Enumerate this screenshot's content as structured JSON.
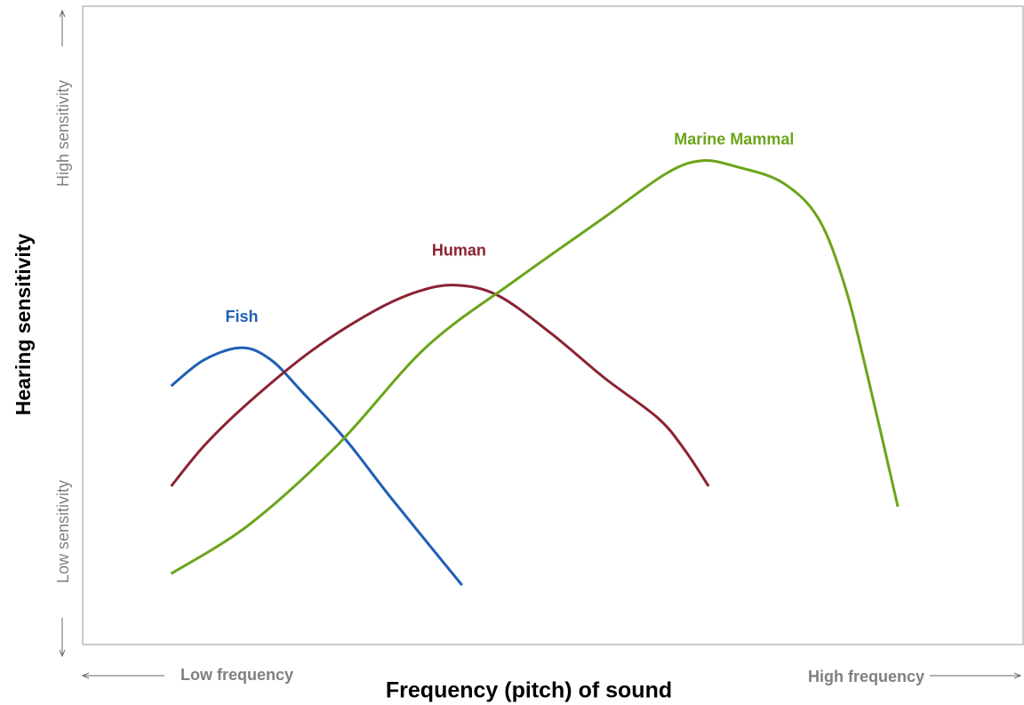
{
  "chart_data": {
    "type": "line",
    "x_label": "Frequency (pitch) of sound",
    "y_label": "Hearing sensitivity",
    "x_low_label": "Low frequency",
    "x_high_label": "High frequency",
    "y_low_label": "Low sensitivity",
    "y_high_label": "High sensitivity",
    "xlim": [
      0,
      100
    ],
    "ylim": [
      0,
      100
    ],
    "series": [
      {
        "name": "Fish",
        "color": "#1f5fb4",
        "x": [
          9.4,
          12.9,
          16.9,
          20.0,
          23.3,
          28.0,
          32.8,
          40.3
        ],
        "values": [
          40.5,
          44.6,
          46.5,
          44.6,
          39.6,
          32.0,
          22.9,
          9.3
        ]
      },
      {
        "name": "Human",
        "color": "#8b2232",
        "x": [
          9.4,
          13.0,
          17.7,
          24.3,
          30.9,
          35.6,
          39.6,
          44.1,
          49.8,
          55.4,
          61.1,
          63.9,
          66.5
        ],
        "values": [
          24.8,
          31.3,
          38.0,
          46.0,
          52.2,
          55.3,
          56.3,
          54.7,
          48.7,
          41.8,
          35.5,
          30.6,
          24.8
        ]
      },
      {
        "name": "Marine Mammal",
        "color": "#6aa51a",
        "x": [
          9.4,
          17.7,
          27.1,
          36.5,
          46.0,
          55.4,
          62.0,
          65.8,
          69.6,
          74.3,
          78.1,
          80.9,
          83.3,
          86.6
        ],
        "values": [
          11.1,
          18.8,
          31.3,
          46.6,
          57.1,
          66.9,
          73.8,
          75.8,
          74.8,
          72.4,
          66.9,
          56.5,
          42.6,
          21.6
        ]
      }
    ]
  }
}
